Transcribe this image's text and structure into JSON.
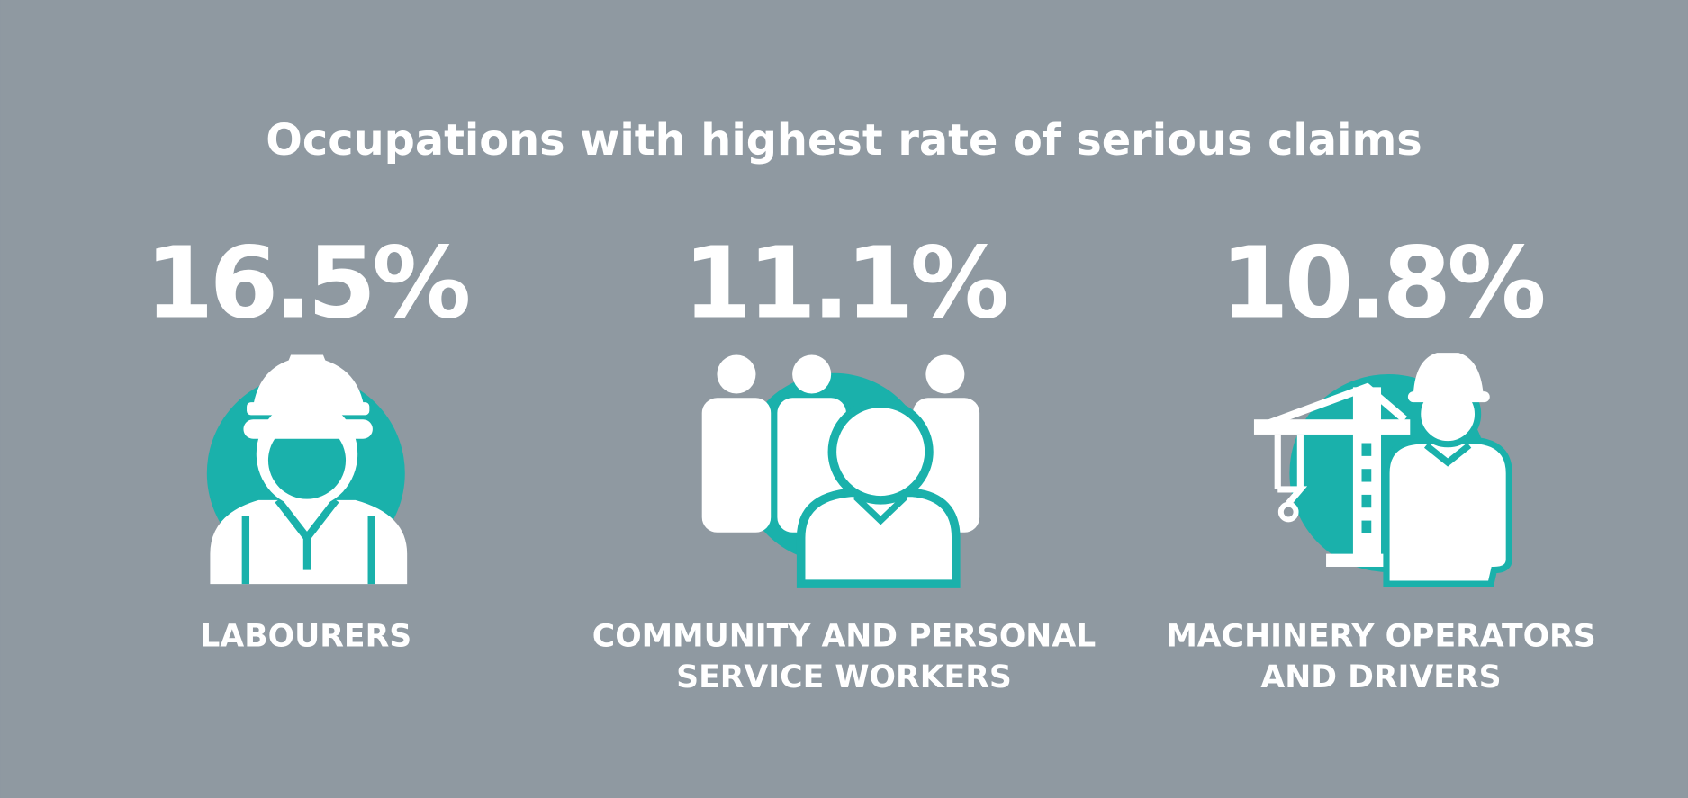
{
  "header": {
    "title": "Occupations with highest rate of serious claims"
  },
  "items": [
    {
      "percent": "16.5%",
      "label_lines": [
        "LABOURERS"
      ]
    },
    {
      "percent": "11.1%",
      "label_lines": [
        "COMMUNITY AND PERSONAL",
        "SERVICE WORKERS"
      ]
    },
    {
      "percent": "10.8%",
      "label_lines": [
        "MACHINERY OPERATORS",
        "AND DRIVERS"
      ]
    }
  ]
}
